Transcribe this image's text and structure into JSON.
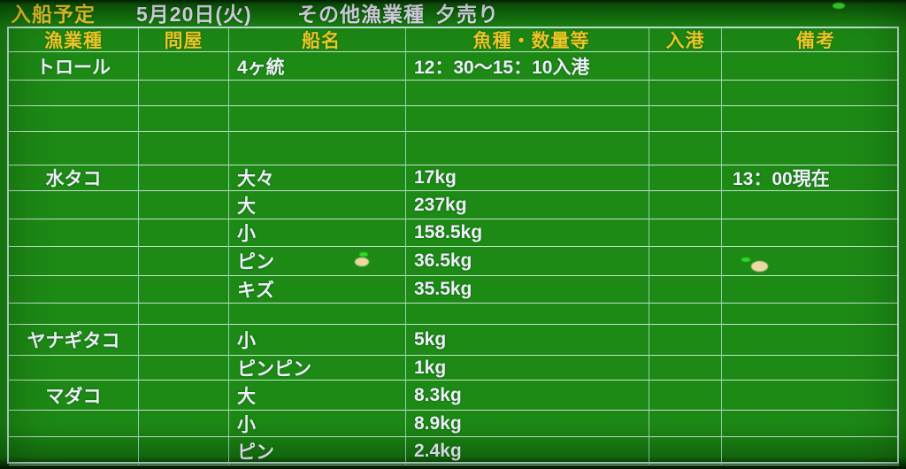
{
  "title_bar": {
    "title": "入船予定",
    "date": "5月20日(火)",
    "category": "その他漁業種",
    "sale": "夕売り"
  },
  "table": {
    "columns": [
      "漁業種",
      "問屋",
      "船名",
      "魚種・数量等",
      "入港",
      "備考"
    ],
    "rows": [
      [
        "トロール",
        "",
        "4ヶ統",
        "12：30〜15：10入港",
        "",
        ""
      ],
      [
        "",
        "",
        "",
        "",
        "",
        ""
      ],
      [
        "",
        "",
        "",
        "",
        "",
        ""
      ],
      [
        "",
        "",
        "",
        "",
        "",
        ""
      ],
      [
        "水タコ",
        "",
        "大々",
        "17kg",
        "",
        "13：00現在"
      ],
      [
        "",
        "",
        "大",
        "237kg",
        "",
        ""
      ],
      [
        "",
        "",
        "小",
        "158.5kg",
        "",
        ""
      ],
      [
        "",
        "",
        "ピン",
        "36.5kg",
        "",
        ""
      ],
      [
        "",
        "",
        "キズ",
        "35.5kg",
        "",
        ""
      ],
      [
        "",
        "",
        "",
        "",
        "",
        ""
      ],
      [
        "ヤナギタコ",
        "",
        "小",
        "5kg",
        "",
        ""
      ],
      [
        "",
        "",
        "ピンピン",
        "1kg",
        "",
        ""
      ],
      [
        "マダコ",
        "",
        "大",
        "8.3kg",
        "",
        ""
      ],
      [
        "",
        "",
        "小",
        "8.9kg",
        "",
        ""
      ],
      [
        "",
        "",
        "ピン",
        "2.4kg",
        "",
        ""
      ]
    ]
  },
  "colors": {
    "background_green": "#1d8a15",
    "grid_line": "#c6ebdd",
    "header_text": "#f0cb28",
    "data_text": "#eef0fb"
  }
}
